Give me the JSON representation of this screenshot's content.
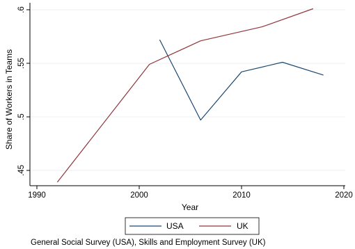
{
  "chart_data": {
    "type": "line",
    "xlabel": "Year",
    "ylabel": "Share of Workers in Teams",
    "xlim": [
      1990,
      2020
    ],
    "ylim": [
      0.44,
      0.605
    ],
    "x_ticks": [
      1990,
      2000,
      2010,
      2020
    ],
    "x_tick_labels": [
      "1990",
      "2000",
      "2010",
      "2020"
    ],
    "y_ticks": [
      0.45,
      0.5,
      0.55,
      0.6
    ],
    "y_tick_labels": [
      ".45",
      ".5",
      ".55",
      ".6"
    ],
    "grid": "horizontal",
    "legend_position": "bottom",
    "series": [
      {
        "name": "USA",
        "color": "#1a476f",
        "x": [
          2002,
          2006,
          2010,
          2014,
          2018
        ],
        "y": [
          0.572,
          0.497,
          0.542,
          0.551,
          0.539
        ]
      },
      {
        "name": "UK",
        "color": "#90353b",
        "x": [
          1992,
          2001,
          2006,
          2012,
          2017
        ],
        "y": [
          0.439,
          0.549,
          0.571,
          0.584,
          0.601
        ]
      }
    ],
    "note": "General Social Survey (USA), Skills and Employment Survey (UK)"
  }
}
